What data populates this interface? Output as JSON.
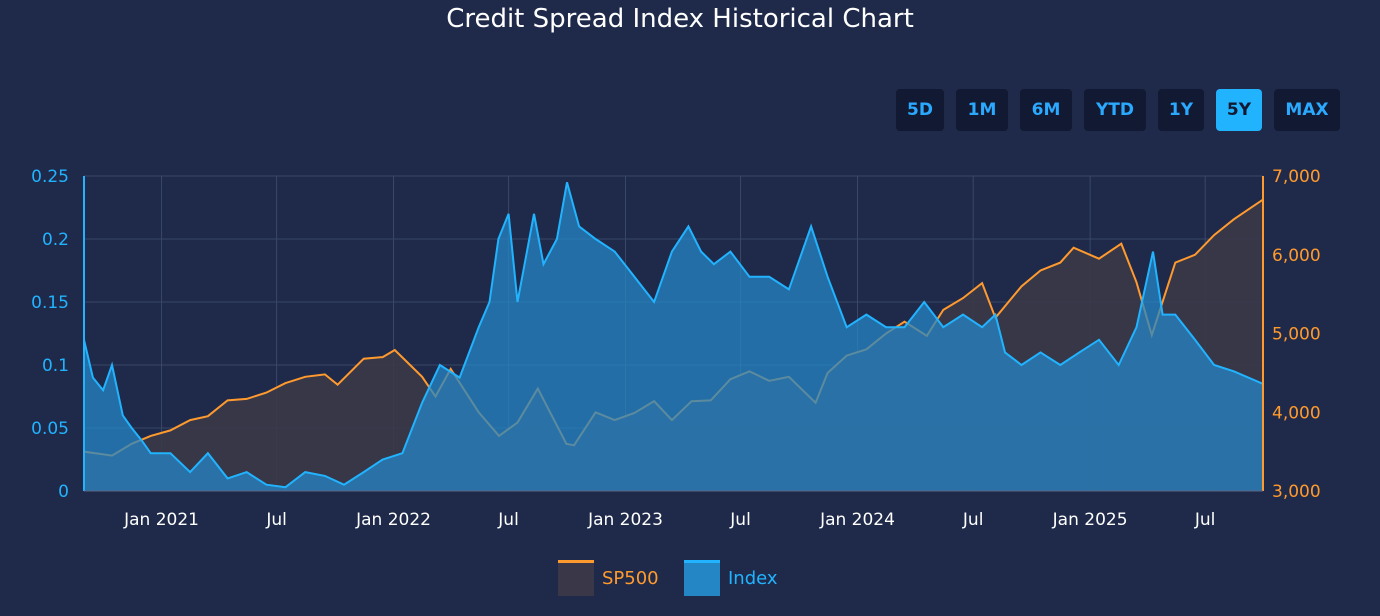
{
  "title": "Credit Spread Index Historical Chart",
  "range_buttons": [
    "5D",
    "1M",
    "6M",
    "YTD",
    "1Y",
    "5Y",
    "MAX"
  ],
  "active_range": "5Y",
  "colors": {
    "background": "#1f2a4a",
    "grid": "#3a4766",
    "sp500_line": "#ff9a2e",
    "sp500_fill": "#3a3848",
    "index_line": "#22b3ff",
    "index_fill": "#2586c6",
    "left_axis": "#22b3ff",
    "right_axis": "#ff9a2e",
    "button_bg": "#121a33",
    "button_active_bg": "#22b3ff"
  },
  "chart_data": {
    "type": "area",
    "title": "Credit Spread Index Historical Chart",
    "x_range": [
      "2020-09-01",
      "2025-09-30"
    ],
    "x_ticks": [
      "Jan 2021",
      "Jul",
      "Jan 2022",
      "Jul",
      "Jan 2023",
      "Jul",
      "Jan 2024",
      "Jul",
      "Jan 2025",
      "Jul"
    ],
    "x_tick_dates": [
      "2021-01-01",
      "2021-07-01",
      "2022-01-01",
      "2022-07-01",
      "2023-01-01",
      "2023-07-01",
      "2024-01-01",
      "2024-07-01",
      "2025-01-01",
      "2025-07-01"
    ],
    "y_left": {
      "ticks": [
        "0",
        "0.05",
        "0.1",
        "0.15",
        "0.2",
        "0.25"
      ],
      "range": [
        0,
        0.25
      ]
    },
    "y_right": {
      "ticks": [
        "3,000",
        "4,000",
        "5,000",
        "6,000",
        "7,000"
      ],
      "range": [
        3000,
        7000
      ]
    },
    "grid": true,
    "legend": "bottom-center",
    "series": [
      {
        "name": "SP500",
        "axis": "right",
        "points": [
          [
            "2020-09-01",
            3500
          ],
          [
            "2020-10-15",
            3450
          ],
          [
            "2020-11-15",
            3600
          ],
          [
            "2020-12-15",
            3700
          ],
          [
            "2021-01-15",
            3770
          ],
          [
            "2021-02-15",
            3900
          ],
          [
            "2021-03-15",
            3950
          ],
          [
            "2021-04-15",
            4150
          ],
          [
            "2021-05-15",
            4170
          ],
          [
            "2021-06-15",
            4250
          ],
          [
            "2021-07-15",
            4370
          ],
          [
            "2021-08-15",
            4450
          ],
          [
            "2021-09-15",
            4480
          ],
          [
            "2021-10-05",
            4350
          ],
          [
            "2021-11-15",
            4680
          ],
          [
            "2021-12-15",
            4700
          ],
          [
            "2022-01-03",
            4790
          ],
          [
            "2022-02-15",
            4450
          ],
          [
            "2022-03-08",
            4200
          ],
          [
            "2022-04-01",
            4550
          ],
          [
            "2022-05-15",
            4000
          ],
          [
            "2022-06-16",
            3700
          ],
          [
            "2022-07-15",
            3870
          ],
          [
            "2022-08-16",
            4300
          ],
          [
            "2022-09-30",
            3600
          ],
          [
            "2022-10-12",
            3580
          ],
          [
            "2022-11-15",
            4000
          ],
          [
            "2022-12-15",
            3900
          ],
          [
            "2023-01-15",
            3990
          ],
          [
            "2023-02-15",
            4140
          ],
          [
            "2023-03-15",
            3900
          ],
          [
            "2023-04-15",
            4140
          ],
          [
            "2023-05-15",
            4150
          ],
          [
            "2023-06-15",
            4420
          ],
          [
            "2023-07-15",
            4520
          ],
          [
            "2023-08-15",
            4400
          ],
          [
            "2023-09-15",
            4450
          ],
          [
            "2023-10-27",
            4120
          ],
          [
            "2023-11-15",
            4500
          ],
          [
            "2023-12-15",
            4720
          ],
          [
            "2024-01-15",
            4800
          ],
          [
            "2024-02-15",
            5000
          ],
          [
            "2024-03-15",
            5150
          ],
          [
            "2024-04-19",
            4970
          ],
          [
            "2024-05-15",
            5300
          ],
          [
            "2024-06-15",
            5450
          ],
          [
            "2024-07-15",
            5640
          ],
          [
            "2024-08-05",
            5200
          ],
          [
            "2024-09-15",
            5600
          ],
          [
            "2024-10-15",
            5800
          ],
          [
            "2024-11-15",
            5900
          ],
          [
            "2024-12-06",
            6090
          ],
          [
            "2025-01-15",
            5950
          ],
          [
            "2025-02-19",
            6140
          ],
          [
            "2025-03-15",
            5650
          ],
          [
            "2025-04-08",
            4980
          ],
          [
            "2025-05-15",
            5900
          ],
          [
            "2025-06-15",
            6000
          ],
          [
            "2025-07-15",
            6250
          ],
          [
            "2025-08-15",
            6450
          ],
          [
            "2025-09-30",
            6700
          ]
        ]
      },
      {
        "name": "Index",
        "axis": "left",
        "points": [
          [
            "2020-09-01",
            0.12
          ],
          [
            "2020-09-15",
            0.09
          ],
          [
            "2020-10-01",
            0.08
          ],
          [
            "2020-10-15",
            0.1
          ],
          [
            "2020-11-01",
            0.06
          ],
          [
            "2020-11-15",
            0.05
          ],
          [
            "2020-12-01",
            0.04
          ],
          [
            "2020-12-15",
            0.03
          ],
          [
            "2021-01-15",
            0.03
          ],
          [
            "2021-02-15",
            0.015
          ],
          [
            "2021-03-15",
            0.03
          ],
          [
            "2021-04-15",
            0.01
          ],
          [
            "2021-05-15",
            0.015
          ],
          [
            "2021-06-15",
            0.005
          ],
          [
            "2021-07-15",
            0.003
          ],
          [
            "2021-08-15",
            0.015
          ],
          [
            "2021-09-15",
            0.012
          ],
          [
            "2021-10-15",
            0.005
          ],
          [
            "2021-11-15",
            0.015
          ],
          [
            "2021-12-15",
            0.025
          ],
          [
            "2022-01-15",
            0.03
          ],
          [
            "2022-02-15",
            0.07
          ],
          [
            "2022-03-15",
            0.1
          ],
          [
            "2022-04-15",
            0.09
          ],
          [
            "2022-05-15",
            0.13
          ],
          [
            "2022-06-01",
            0.15
          ],
          [
            "2022-06-15",
            0.2
          ],
          [
            "2022-07-01",
            0.22
          ],
          [
            "2022-07-15",
            0.15
          ],
          [
            "2022-08-10",
            0.22
          ],
          [
            "2022-08-25",
            0.18
          ],
          [
            "2022-09-15",
            0.2
          ],
          [
            "2022-10-01",
            0.245
          ],
          [
            "2022-10-20",
            0.21
          ],
          [
            "2022-11-15",
            0.2
          ],
          [
            "2022-12-15",
            0.19
          ],
          [
            "2023-01-15",
            0.17
          ],
          [
            "2023-02-15",
            0.15
          ],
          [
            "2023-03-15",
            0.19
          ],
          [
            "2023-04-10",
            0.21
          ],
          [
            "2023-04-30",
            0.19
          ],
          [
            "2023-05-20",
            0.18
          ],
          [
            "2023-06-15",
            0.19
          ],
          [
            "2023-07-15",
            0.17
          ],
          [
            "2023-08-15",
            0.17
          ],
          [
            "2023-09-15",
            0.16
          ],
          [
            "2023-10-20",
            0.21
          ],
          [
            "2023-11-15",
            0.17
          ],
          [
            "2023-12-15",
            0.13
          ],
          [
            "2024-01-15",
            0.14
          ],
          [
            "2024-02-15",
            0.13
          ],
          [
            "2024-03-15",
            0.13
          ],
          [
            "2024-04-15",
            0.15
          ],
          [
            "2024-05-15",
            0.13
          ],
          [
            "2024-06-15",
            0.14
          ],
          [
            "2024-07-15",
            0.13
          ],
          [
            "2024-08-05",
            0.14
          ],
          [
            "2024-08-20",
            0.11
          ],
          [
            "2024-09-15",
            0.1
          ],
          [
            "2024-10-15",
            0.11
          ],
          [
            "2024-11-15",
            0.1
          ],
          [
            "2024-12-15",
            0.11
          ],
          [
            "2025-01-15",
            0.12
          ],
          [
            "2025-02-15",
            0.1
          ],
          [
            "2025-03-15",
            0.13
          ],
          [
            "2025-04-10",
            0.19
          ],
          [
            "2025-04-25",
            0.14
          ],
          [
            "2025-05-15",
            0.14
          ],
          [
            "2025-06-15",
            0.12
          ],
          [
            "2025-07-15",
            0.1
          ],
          [
            "2025-08-15",
            0.095
          ],
          [
            "2025-09-30",
            0.085
          ]
        ]
      }
    ]
  }
}
